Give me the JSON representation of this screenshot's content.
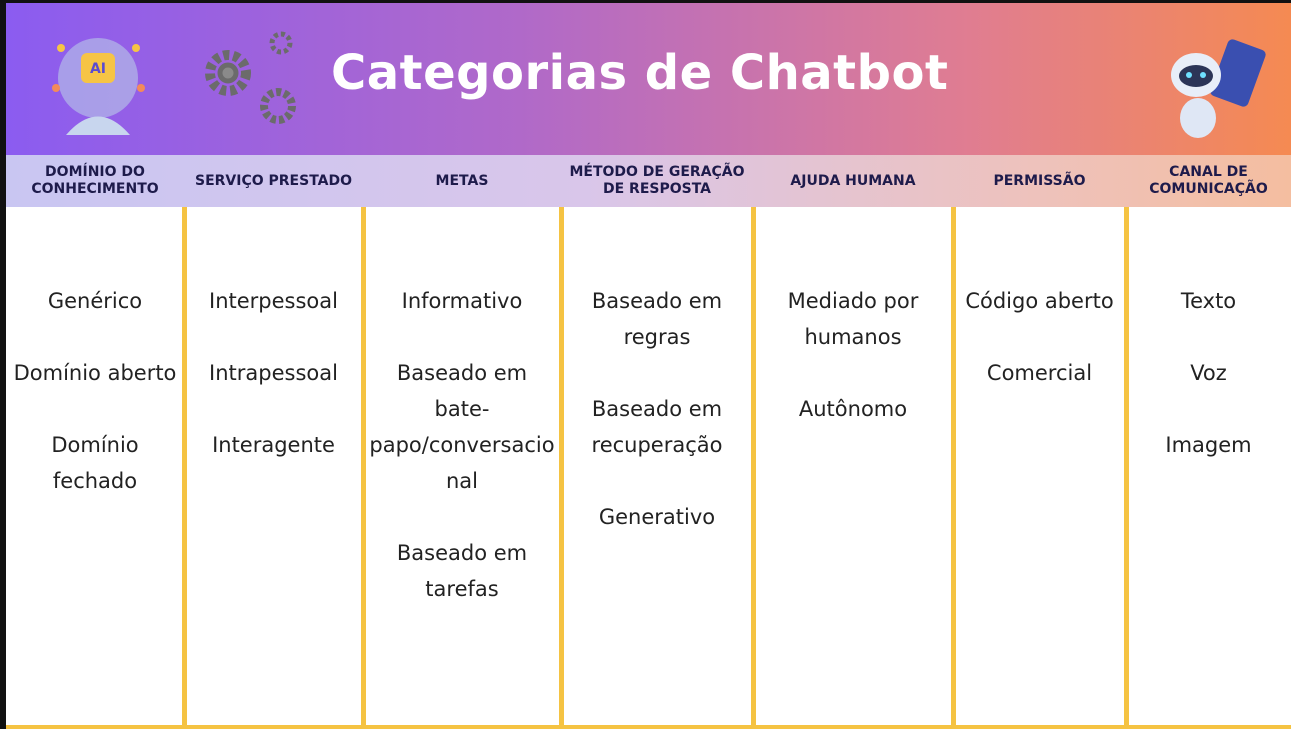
{
  "header": {
    "title": "Categorias de Chatbot"
  },
  "columns": [
    {
      "heading": "DOMÍNIO DO CONHECIMENTO",
      "items": [
        "Genérico",
        "Domínio aberto",
        "Domínio fechado"
      ]
    },
    {
      "heading": "SERVIÇO PRESTADO",
      "items": [
        "Interpessoal",
        "Intrapessoal",
        "Interagente"
      ]
    },
    {
      "heading": "METAS",
      "items": [
        "Informativo",
        "Baseado em bate-papo/conversacional",
        "Baseado em tarefas"
      ]
    },
    {
      "heading": "MÉTODO DE GERAÇÃO DE RESPOSTA",
      "items": [
        "Baseado em regras",
        "Baseado em recuperação",
        "Generativo"
      ]
    },
    {
      "heading": "AJUDA HUMANA",
      "items": [
        "Mediado por humanos",
        "Autônomo"
      ]
    },
    {
      "heading": "PERMISSÃO",
      "items": [
        "Código aberto",
        "Comercial"
      ]
    },
    {
      "heading": "CANAL DE COMUNICAÇÃO",
      "items": [
        "Texto",
        "Voz",
        "Imagem"
      ]
    }
  ]
}
